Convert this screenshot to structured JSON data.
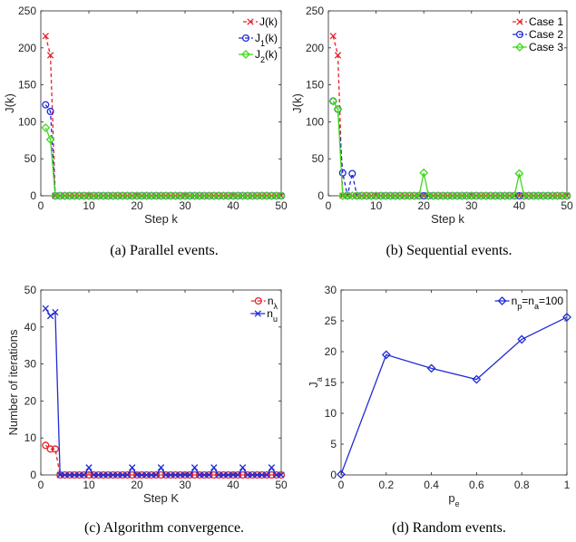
{
  "panels": [
    {
      "id": "a",
      "caption": "(a) Parallel events.",
      "chart_data": {
        "type": "line",
        "xlabel": "Step k",
        "ylabel": "J(k)",
        "xlim": [
          0,
          50
        ],
        "ylim": [
          0,
          250
        ],
        "xticks": [
          0,
          10,
          20,
          30,
          40,
          50
        ],
        "yticks": [
          0,
          50,
          100,
          150,
          200,
          250
        ],
        "legend_position": "top-right",
        "series": [
          {
            "name": "J(k)",
            "color": "#e8202a",
            "marker": "x",
            "dash": "4,3",
            "x": [
              1,
              2,
              3,
              4,
              5,
              6,
              7,
              8,
              9,
              10,
              11,
              12,
              13,
              14,
              15,
              16,
              17,
              18,
              19,
              20,
              21,
              22,
              23,
              24,
              25,
              26,
              27,
              28,
              29,
              30,
              31,
              32,
              33,
              34,
              35,
              36,
              37,
              38,
              39,
              40,
              41,
              42,
              43,
              44,
              45,
              46,
              47,
              48,
              49,
              50
            ],
            "y": [
              216,
              190,
              0,
              0,
              0,
              0,
              0,
              0,
              0,
              0,
              0,
              0,
              0,
              0,
              0,
              0,
              0,
              0,
              0,
              0,
              0,
              0,
              0,
              0,
              0,
              0,
              0,
              0,
              0,
              0,
              0,
              0,
              0,
              0,
              0,
              0,
              0,
              0,
              0,
              0,
              0,
              0,
              0,
              0,
              0,
              0,
              0,
              0,
              0,
              0
            ]
          },
          {
            "name": "J<sub>1</sub>(k)",
            "color": "#1f2bd6",
            "marker": "o",
            "dash": "4,3",
            "x": [
              1,
              2,
              3,
              4,
              5,
              6,
              7,
              8,
              9,
              10,
              11,
              12,
              13,
              14,
              15,
              16,
              17,
              18,
              19,
              20,
              21,
              22,
              23,
              24,
              25,
              26,
              27,
              28,
              29,
              30,
              31,
              32,
              33,
              34,
              35,
              36,
              37,
              38,
              39,
              40,
              41,
              42,
              43,
              44,
              45,
              46,
              47,
              48,
              49,
              50
            ],
            "y": [
              123,
              114,
              0,
              0,
              0,
              0,
              0,
              0,
              0,
              0,
              0,
              0,
              0,
              0,
              0,
              0,
              0,
              0,
              0,
              0,
              0,
              0,
              0,
              0,
              0,
              0,
              0,
              0,
              0,
              0,
              0,
              0,
              0,
              0,
              0,
              0,
              0,
              0,
              0,
              0,
              0,
              0,
              0,
              0,
              0,
              0,
              0,
              0,
              0,
              0
            ]
          },
          {
            "name": "J<sub>2</sub>(k)",
            "color": "#3fd81b",
            "marker": "d",
            "dash": "",
            "x": [
              1,
              2,
              3,
              4,
              5,
              6,
              7,
              8,
              9,
              10,
              11,
              12,
              13,
              14,
              15,
              16,
              17,
              18,
              19,
              20,
              21,
              22,
              23,
              24,
              25,
              26,
              27,
              28,
              29,
              30,
              31,
              32,
              33,
              34,
              35,
              36,
              37,
              38,
              39,
              40,
              41,
              42,
              43,
              44,
              45,
              46,
              47,
              48,
              49,
              50
            ],
            "y": [
              92,
              76,
              0,
              0,
              0,
              0,
              0,
              0,
              0,
              0,
              0,
              0,
              0,
              0,
              0,
              0,
              0,
              0,
              0,
              0,
              0,
              0,
              0,
              0,
              0,
              0,
              0,
              0,
              0,
              0,
              0,
              0,
              0,
              0,
              0,
              0,
              0,
              0,
              0,
              0,
              0,
              0,
              0,
              0,
              0,
              0,
              0,
              0,
              0,
              0
            ]
          }
        ]
      }
    },
    {
      "id": "b",
      "caption": "(b) Sequential events.",
      "chart_data": {
        "type": "line",
        "xlabel": "Step k",
        "ylabel": "J(k)",
        "xlim": [
          0,
          50
        ],
        "ylim": [
          0,
          250
        ],
        "xticks": [
          0,
          10,
          20,
          30,
          40,
          50
        ],
        "yticks": [
          0,
          50,
          100,
          150,
          200,
          250
        ],
        "legend_position": "top-right",
        "series": [
          {
            "name": "Case 1",
            "color": "#e8202a",
            "marker": "x",
            "dash": "4,3",
            "x": [
              1,
              2,
              3,
              4,
              5,
              6,
              7,
              8,
              9,
              10,
              11,
              12,
              13,
              14,
              15,
              16,
              17,
              18,
              19,
              20,
              21,
              22,
              23,
              24,
              25,
              26,
              27,
              28,
              29,
              30,
              31,
              32,
              33,
              34,
              35,
              36,
              37,
              38,
              39,
              40,
              41,
              42,
              43,
              44,
              45,
              46,
              47,
              48,
              49,
              50
            ],
            "y": [
              216,
              190,
              0,
              0,
              0,
              0,
              0,
              0,
              0,
              0,
              0,
              0,
              0,
              0,
              0,
              0,
              0,
              0,
              0,
              0,
              0,
              0,
              0,
              0,
              0,
              0,
              0,
              0,
              0,
              0,
              0,
              0,
              0,
              0,
              0,
              0,
              0,
              0,
              0,
              0,
              0,
              0,
              0,
              0,
              0,
              0,
              0,
              0,
              0,
              0
            ]
          },
          {
            "name": "Case 2",
            "color": "#1f2bd6",
            "marker": "o",
            "dash": "4,3",
            "x": [
              1,
              2,
              3,
              4,
              5,
              6,
              7,
              8,
              9,
              10,
              11,
              12,
              13,
              14,
              15,
              16,
              17,
              18,
              19,
              20,
              21,
              22,
              23,
              24,
              25,
              26,
              27,
              28,
              29,
              30,
              31,
              32,
              33,
              34,
              35,
              36,
              37,
              38,
              39,
              40,
              41,
              42,
              43,
              44,
              45,
              46,
              47,
              48,
              49,
              50
            ],
            "y": [
              128,
              117,
              31,
              0,
              30,
              0,
              0,
              0,
              0,
              0,
              0,
              0,
              0,
              0,
              0,
              0,
              0,
              0,
              0,
              0,
              0,
              0,
              0,
              0,
              0,
              0,
              0,
              0,
              0,
              0,
              0,
              0,
              0,
              0,
              0,
              0,
              0,
              0,
              0,
              0,
              0,
              0,
              0,
              0,
              0,
              0,
              0,
              0,
              0,
              0
            ]
          },
          {
            "name": "Case 3",
            "color": "#3fd81b",
            "marker": "d",
            "dash": "",
            "x": [
              1,
              2,
              3,
              4,
              5,
              6,
              7,
              8,
              9,
              10,
              11,
              12,
              13,
              14,
              15,
              16,
              17,
              18,
              19,
              20,
              21,
              22,
              23,
              24,
              25,
              26,
              27,
              28,
              29,
              30,
              31,
              32,
              33,
              34,
              35,
              36,
              37,
              38,
              39,
              40,
              41,
              42,
              43,
              44,
              45,
              46,
              47,
              48,
              49,
              50
            ],
            "y": [
              128,
              117,
              0,
              0,
              0,
              0,
              0,
              0,
              0,
              0,
              0,
              0,
              0,
              0,
              0,
              0,
              0,
              0,
              0,
              31,
              0,
              0,
              0,
              0,
              0,
              0,
              0,
              0,
              0,
              0,
              0,
              0,
              0,
              0,
              0,
              0,
              0,
              0,
              0,
              30,
              0,
              0,
              0,
              0,
              0,
              0,
              0,
              0,
              0,
              0
            ]
          }
        ]
      }
    },
    {
      "id": "c",
      "caption": "(c) Algorithm convergence.",
      "chart_data": {
        "type": "line",
        "xlabel": "Step K",
        "ylabel": "Number of iterations",
        "xlim": [
          0,
          50
        ],
        "ylim": [
          0,
          50
        ],
        "xticks": [
          0,
          10,
          20,
          30,
          40,
          50
        ],
        "yticks": [
          0,
          10,
          20,
          30,
          40,
          50
        ],
        "legend_position": "top-right",
        "series": [
          {
            "name": "n<sub>λ</sub>",
            "color": "#e8202a",
            "marker": "o",
            "dash": "4,3",
            "x": [
              1,
              2,
              3,
              4,
              5,
              6,
              7,
              8,
              9,
              10,
              11,
              12,
              13,
              14,
              15,
              16,
              17,
              18,
              19,
              20,
              21,
              22,
              23,
              24,
              25,
              26,
              27,
              28,
              29,
              30,
              31,
              32,
              33,
              34,
              35,
              36,
              37,
              38,
              39,
              40,
              41,
              42,
              43,
              44,
              45,
              46,
              47,
              48,
              49,
              50
            ],
            "y": [
              8,
              7,
              7,
              0,
              0,
              0,
              0,
              0,
              0,
              0,
              0,
              0,
              0,
              0,
              0,
              0,
              0,
              0,
              0,
              0,
              0,
              0,
              0,
              0,
              0,
              0,
              0,
              0,
              0,
              0,
              0,
              0,
              0,
              0,
              0,
              0,
              0,
              0,
              0,
              0,
              0,
              0,
              0,
              0,
              0,
              0,
              0,
              0,
              0,
              0
            ]
          },
          {
            "name": "n<sub>u</sub>",
            "color": "#1f2bd6",
            "marker": "x",
            "dash": "",
            "x": [
              1,
              2,
              3,
              4,
              5,
              6,
              7,
              8,
              9,
              10,
              11,
              12,
              13,
              14,
              15,
              16,
              17,
              18,
              19,
              20,
              21,
              22,
              23,
              24,
              25,
              26,
              27,
              28,
              29,
              30,
              31,
              32,
              33,
              34,
              35,
              36,
              37,
              38,
              39,
              40,
              41,
              42,
              43,
              44,
              45,
              46,
              47,
              48,
              49,
              50
            ],
            "y": [
              45,
              43,
              44,
              0,
              0,
              0,
              0,
              0,
              0,
              2,
              0,
              0,
              0,
              0,
              0,
              0,
              0,
              0,
              2,
              0,
              0,
              0,
              0,
              0,
              2,
              0,
              0,
              0,
              0,
              0,
              0,
              2,
              0,
              0,
              0,
              2,
              0,
              0,
              0,
              0,
              0,
              2,
              0,
              0,
              0,
              0,
              0,
              2,
              0,
              0
            ]
          }
        ]
      }
    },
    {
      "id": "d",
      "caption": "(d) Random events.",
      "chart_data": {
        "type": "line",
        "xlabel": "p<sub>e</sub>",
        "ylabel": "J<sub>a</sub>",
        "xlim": [
          0,
          1
        ],
        "ylim": [
          0,
          30
        ],
        "xticks": [
          0,
          0.2,
          0.4,
          0.6,
          0.8,
          1
        ],
        "yticks": [
          0,
          5,
          10,
          15,
          20,
          25,
          30
        ],
        "legend_position": "top-right",
        "series": [
          {
            "name": "n<sub>p</sub>=n<sub>a</sub>=100",
            "color": "#1f2bd6",
            "marker": "d",
            "dash": "",
            "x": [
              0,
              0.2,
              0.4,
              0.6,
              0.8,
              1
            ],
            "y": [
              0.1,
              19.5,
              17.3,
              15.5,
              22.0,
              25.6
            ]
          }
        ]
      }
    }
  ]
}
